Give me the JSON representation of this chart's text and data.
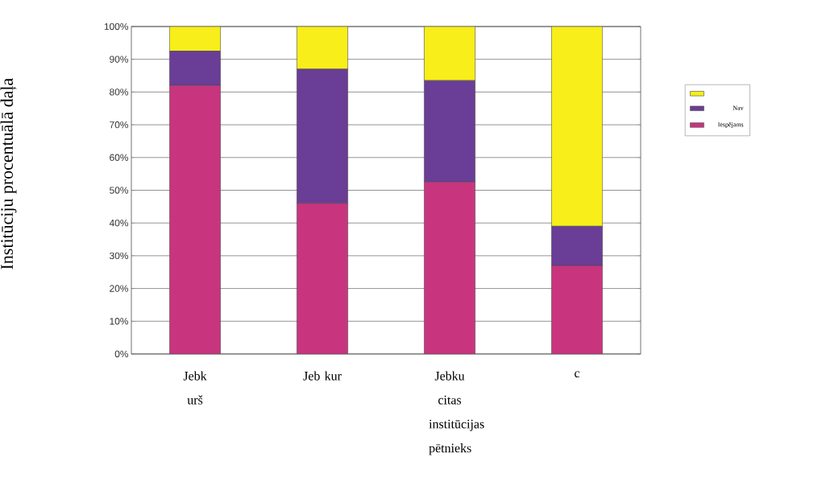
{
  "chart_data": {
    "type": "bar",
    "stacked": true,
    "ylabel": "Institūciju procentuālā daļa",
    "categories": [
      "Jebk urš",
      "Jeb kur",
      "Jebku citas institūcijas pētnieks",
      "c"
    ],
    "series": [
      {
        "name": "Iespējams",
        "color": "#c8357e",
        "values": [
          82,
          46,
          52.5,
          27
        ]
      },
      {
        "name": "Nav",
        "color": "#6a3d96",
        "values": [
          10.5,
          41,
          31,
          12
        ]
      },
      {
        "color": "#f7ee1a",
        "values": [
          7.5,
          13,
          16.5,
          61
        ]
      }
    ],
    "ylim": [
      0,
      100
    ],
    "yticks": [
      {
        "value": 0,
        "label": "0%"
      },
      {
        "value": 10,
        "label": "10%"
      },
      {
        "value": 20,
        "label": "20%"
      },
      {
        "value": 30,
        "label": "30%"
      },
      {
        "value": 40,
        "label": "40%"
      },
      {
        "value": 50,
        "label": "50%"
      },
      {
        "value": 60,
        "label": "60%"
      },
      {
        "value": 70,
        "label": "70%"
      },
      {
        "value": 80,
        "label": "80%"
      },
      {
        "value": 90,
        "label": "90%"
      },
      {
        "value": 100,
        "label": "100%"
      }
    ],
    "grid": "y",
    "legend": "right"
  }
}
